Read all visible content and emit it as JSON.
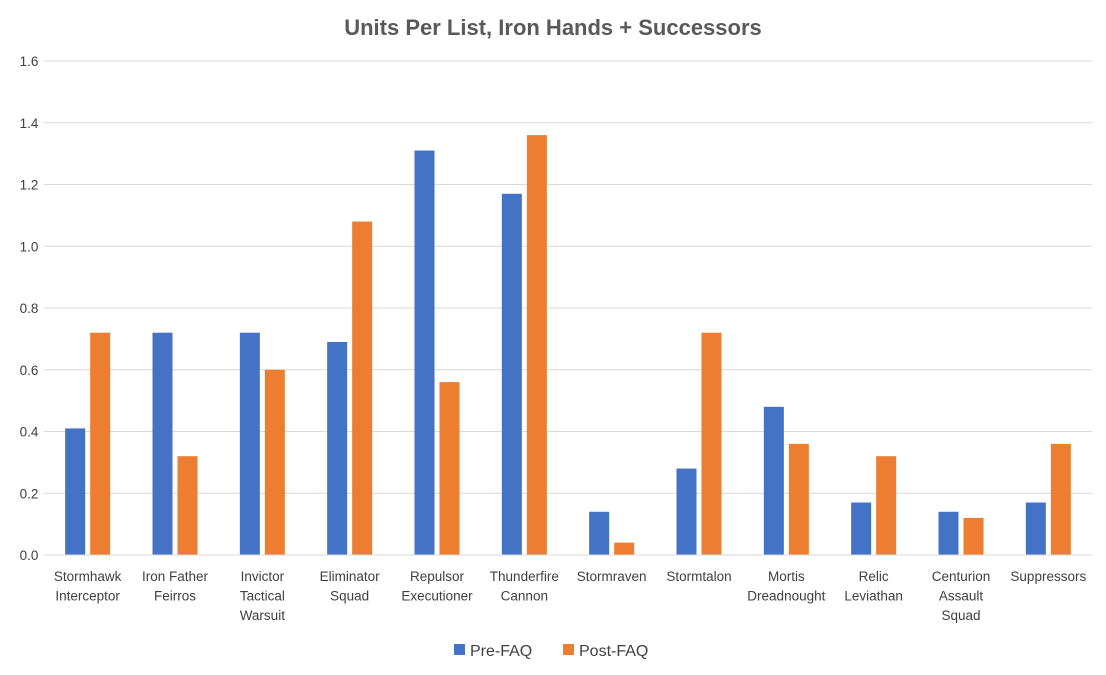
{
  "chart_data": {
    "type": "bar",
    "title": "Units Per List, Iron Hands + Successors",
    "xlabel": "",
    "ylabel": "",
    "ylim": [
      0,
      1.6
    ],
    "yticks": [
      "0.0",
      "0.2",
      "0.4",
      "0.6",
      "0.8",
      "1.0",
      "1.2",
      "1.4",
      "1.6"
    ],
    "grid": true,
    "legend_position": "bottom",
    "categories": [
      [
        "Stormhawk",
        "Interceptor"
      ],
      [
        "Iron Father",
        "Feirros"
      ],
      [
        "Invictor",
        "Tactical",
        "Warsuit"
      ],
      [
        "Eliminator",
        "Squad"
      ],
      [
        "Repulsor",
        "Executioner"
      ],
      [
        "Thunderfire",
        "Cannon"
      ],
      [
        "Stormraven"
      ],
      [
        "Stormtalon"
      ],
      [
        "Mortis",
        "Dreadnought"
      ],
      [
        "Relic",
        "Leviathan"
      ],
      [
        "Centurion",
        "Assault",
        "Squad"
      ],
      [
        "Suppressors"
      ]
    ],
    "series": [
      {
        "name": "Pre-FAQ",
        "color": "#4472c4",
        "values": [
          0.41,
          0.72,
          0.72,
          0.69,
          1.31,
          1.17,
          0.14,
          0.28,
          0.48,
          0.17,
          0.14,
          0.17
        ]
      },
      {
        "name": "Post-FAQ",
        "color": "#ed7d31",
        "values": [
          0.72,
          0.32,
          0.6,
          1.08,
          0.56,
          1.36,
          0.04,
          0.72,
          0.36,
          0.32,
          0.12,
          0.36
        ]
      }
    ]
  }
}
